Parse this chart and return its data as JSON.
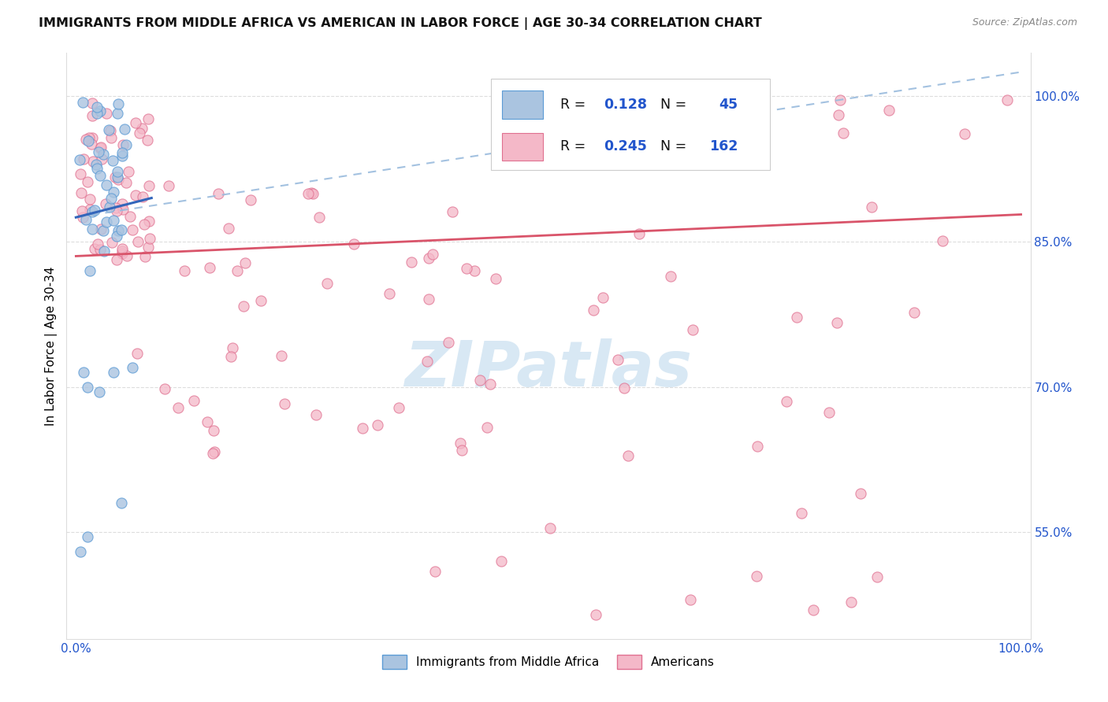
{
  "title": "IMMIGRANTS FROM MIDDLE AFRICA VS AMERICAN IN LABOR FORCE | AGE 30-34 CORRELATION CHART",
  "source": "Source: ZipAtlas.com",
  "ylabel": "In Labor Force | Age 30-34",
  "xlim": [
    -0.01,
    1.01
  ],
  "ylim": [
    0.44,
    1.045
  ],
  "y_ticks_right": [
    0.55,
    0.7,
    0.85,
    1.0
  ],
  "y_tick_labels_right": [
    "55.0%",
    "70.0%",
    "85.0%",
    "100.0%"
  ],
  "legend_blue_label": "Immigrants from Middle Africa",
  "legend_pink_label": "Americans",
  "r_blue": "0.128",
  "n_blue": "45",
  "r_pink": "0.245",
  "n_pink": "162",
  "blue_color": "#aac4e0",
  "blue_edge_color": "#5b9bd5",
  "pink_color": "#f4b8c8",
  "pink_edge_color": "#e07090",
  "trend_blue_color": "#3366bb",
  "trend_pink_color": "#d9546a",
  "trend_dashed_color": "#99bbdd",
  "watermark_text": "ZIPatlas",
  "watermark_color": "#d8e8f4",
  "title_color": "#111111",
  "source_color": "#888888",
  "axis_label_color": "#000000",
  "tick_color": "#2255cc",
  "grid_color": "#dddddd",
  "legend_text_color": "#111111",
  "legend_value_color": "#2255cc"
}
